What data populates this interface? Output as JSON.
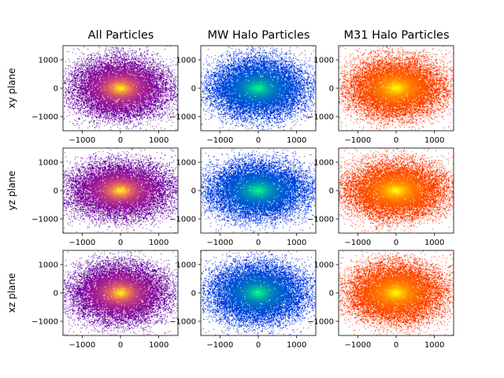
{
  "chart_data": {
    "type": "heatmap",
    "layout": "3x3 grid of 2D histograms",
    "columns": [
      "All Particles",
      "MW Halo Particles",
      "M31 Halo Particles"
    ],
    "rows": [
      "xy plane",
      "yz plane",
      "xz plane"
    ],
    "xlim": [
      -1500,
      1500
    ],
    "ylim": [
      -1500,
      1500
    ],
    "xticks": [
      -1000,
      0,
      1000
    ],
    "yticks": [
      -1000,
      0,
      1000
    ],
    "grid": false,
    "legend": "none",
    "colormaps": {
      "All Particles": "plasma",
      "MW Halo Particles": "winter",
      "M31 Halo Particles": "autumn"
    },
    "colormap_stops": {
      "plasma": [
        "#0d0887",
        "#5b02a3",
        "#9a179b",
        "#cb4678",
        "#eb7852",
        "#fbb32f",
        "#f0f921"
      ],
      "winter": [
        "#0000ff",
        "#0040df",
        "#0080bf",
        "#00bf9f",
        "#00ff80"
      ],
      "autumn": [
        "#ff0000",
        "#ff4000",
        "#ff8000",
        "#ffbf00",
        "#ffff00"
      ]
    },
    "distribution": {
      "center": [
        0,
        0
      ],
      "core_scale": 200,
      "halo_extent": 1500,
      "empty_background": "#ffffff"
    },
    "xlabel": "",
    "ylabel": ""
  }
}
